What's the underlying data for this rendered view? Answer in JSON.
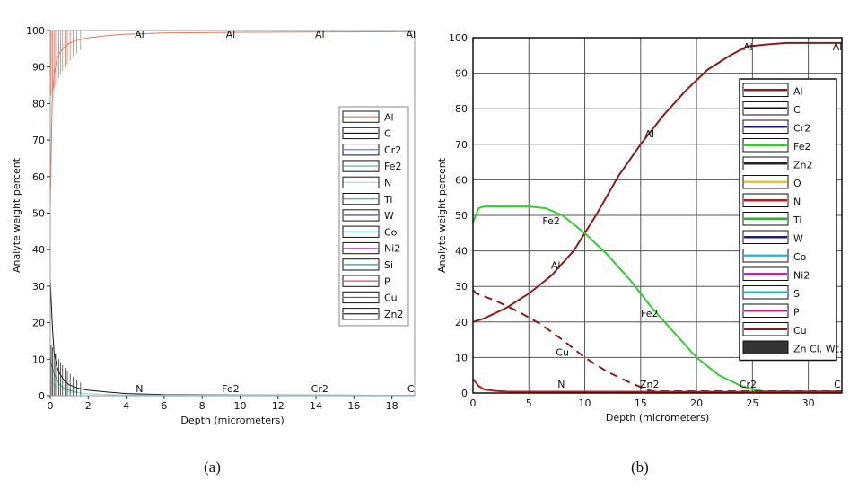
{
  "captions": {
    "a": "(a)",
    "b": "(b)"
  },
  "chart_data": [
    {
      "type": "line",
      "xlabel": "Depth (micrometers)",
      "ylabel": "Analyte weight percent",
      "xlim": [
        0,
        19.2
      ],
      "ylim": [
        0,
        100
      ],
      "xticks": [
        0,
        2,
        4,
        6,
        8,
        10,
        12,
        14,
        16,
        18
      ],
      "yticks": [
        0,
        10,
        20,
        30,
        40,
        50,
        60,
        70,
        80,
        90,
        100
      ],
      "grid": false,
      "legend_position": "right",
      "legend": [
        "Al",
        "C",
        "Cr2",
        "Fe2",
        "N",
        "Ti",
        "W",
        "Co",
        "Ni2",
        "Si",
        "P",
        "Cu",
        "Zn2"
      ],
      "colors": {
        "Al": "#e0795f",
        "C": "#111111",
        "Cr2": "#6d7fbf",
        "Fe2": "#3dbb6b",
        "N": "#9be0ff",
        "Ti": "#3dbb6b",
        "W": "#333399",
        "Co": "#58c8e8",
        "Ni2": "#c062c0",
        "Si": "#2a9a8a",
        "P": "#c05070",
        "Cu": "#884444",
        "Zn2": "#222222"
      },
      "series": [
        {
          "name": "Al",
          "x": [
            0,
            0.1,
            0.2,
            0.35,
            0.5,
            0.75,
            1.0,
            1.5,
            2,
            3,
            4,
            6,
            10,
            15,
            19.2
          ],
          "y": [
            52,
            80,
            88,
            92,
            94,
            95.5,
            96.5,
            97.5,
            98,
            98.6,
            99,
            99.3,
            99.5,
            99.6,
            99.7
          ]
        },
        {
          "name": "C",
          "x": [
            0,
            0.1,
            0.2,
            0.35,
            0.5,
            0.75,
            1.0,
            1.5,
            2,
            3,
            4,
            6,
            10,
            19.2
          ],
          "y": [
            32,
            20,
            12,
            8,
            6,
            4,
            3,
            2,
            1.5,
            1,
            0.6,
            0.3,
            0.2,
            0.1
          ]
        },
        {
          "name": "Fe2",
          "x": [
            0,
            0.1,
            0.2,
            0.35,
            0.5,
            0.75,
            1.0,
            1.5,
            2,
            4,
            19.2
          ],
          "y": [
            10,
            8,
            6,
            4.5,
            3,
            2,
            1.5,
            0.8,
            0.5,
            0.2,
            0.1
          ]
        },
        {
          "name": "N",
          "x": [
            0,
            0.2,
            0.5,
            1.0,
            2,
            4,
            19.2
          ],
          "y": [
            4,
            3,
            2,
            1,
            0.5,
            0.2,
            0.1
          ]
        }
      ],
      "annotations": [
        {
          "text": "Al",
          "x": 4.7,
          "y": 99
        },
        {
          "text": "Al",
          "x": 9.5,
          "y": 99
        },
        {
          "text": "Al",
          "x": 14.2,
          "y": 99
        },
        {
          "text": "Al",
          "x": 19.0,
          "y": 99
        },
        {
          "text": "N",
          "x": 4.7,
          "y": 2
        },
        {
          "text": "Fe2",
          "x": 9.5,
          "y": 2
        },
        {
          "text": "Cr2",
          "x": 14.2,
          "y": 2
        },
        {
          "text": "C",
          "x": 19.0,
          "y": 2
        }
      ]
    },
    {
      "type": "line",
      "xlabel": "Depth (micrometers)",
      "ylabel": "Analyte weight percent",
      "xlim": [
        0,
        33
      ],
      "ylim": [
        0,
        100
      ],
      "xticks": [
        0,
        5,
        10,
        15,
        20,
        25,
        30
      ],
      "yticks": [
        0,
        10,
        20,
        30,
        40,
        50,
        60,
        70,
        80,
        90,
        100
      ],
      "grid": true,
      "legend_position": "right",
      "legend": [
        "Al",
        "C",
        "Cr2",
        "Fe2",
        "Zn2",
        "O",
        "N",
        "Ti",
        "W",
        "Co",
        "Ni2",
        "Si",
        "P",
        "Cu",
        "Zn Cl. Wt."
      ],
      "colors": {
        "Al": "#8b1c1c",
        "C": "#111111",
        "Cr2": "#1c1c8b",
        "Fe2": "#33cc33",
        "Zn2": "#222222",
        "O": "#e6cc1a",
        "N": "#b02020",
        "Ti": "#33aa33",
        "W": "#1c1c8b",
        "Co": "#22c4d6",
        "Ni2": "#c020c0",
        "Si": "#1fb8b0",
        "P": "#cc2288",
        "Cu": "#8b1c1c",
        "Zn Cl. Wt.": "#333333"
      },
      "series": [
        {
          "name": "Al",
          "x": [
            0,
            1,
            3,
            5,
            7,
            9,
            11,
            13,
            15,
            17,
            19,
            21,
            23,
            24.5,
            26,
            28,
            30,
            33
          ],
          "y": [
            20,
            21,
            24,
            28,
            33,
            40,
            50,
            61,
            70,
            78,
            85,
            91,
            95,
            97.5,
            98,
            98.5,
            98.5,
            98.5
          ]
        },
        {
          "name": "Fe2",
          "x": [
            0,
            0.5,
            1,
            3,
            5,
            6.5,
            8,
            10,
            12,
            14,
            16,
            18,
            20,
            22,
            24,
            25,
            26,
            33
          ],
          "y": [
            48,
            52,
            52.5,
            52.5,
            52.5,
            52,
            50,
            45,
            39,
            32,
            24,
            17,
            10,
            5,
            2,
            1,
            0.5,
            0.5
          ]
        },
        {
          "name": "Cu",
          "x": [
            0,
            0.3,
            2,
            4,
            6,
            8,
            10,
            12,
            14,
            15.5,
            16,
            33
          ],
          "y": [
            29,
            28,
            26,
            23,
            19.5,
            15,
            10,
            6,
            3,
            1,
            0.5,
            0.5
          ]
        },
        {
          "name": "N",
          "x": [
            0,
            0.5,
            1,
            2,
            3,
            33
          ],
          "y": [
            4,
            2,
            1,
            0.6,
            0.4,
            0.3
          ]
        }
      ],
      "annotations": [
        {
          "text": "Al",
          "x": 24.6,
          "y": 97.5
        },
        {
          "text": "Al",
          "x": 32.6,
          "y": 97.5
        },
        {
          "text": "Al",
          "x": 15.8,
          "y": 73
        },
        {
          "text": "Al",
          "x": 7.4,
          "y": 36
        },
        {
          "text": "Fe2",
          "x": 7.0,
          "y": 48.5
        },
        {
          "text": "Fe2",
          "x": 15.8,
          "y": 22.5
        },
        {
          "text": "Cu",
          "x": 8.0,
          "y": 11.5
        },
        {
          "text": "N",
          "x": 7.9,
          "y": 2.5
        },
        {
          "text": "Zn2",
          "x": 15.8,
          "y": 2.5
        },
        {
          "text": "Cr2",
          "x": 24.6,
          "y": 2.5
        },
        {
          "text": "C",
          "x": 32.6,
          "y": 2.5
        }
      ]
    }
  ]
}
